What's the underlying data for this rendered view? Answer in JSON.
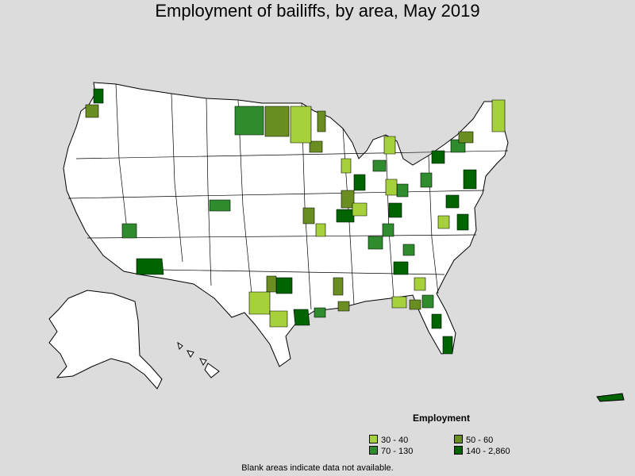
{
  "title": "Employment of bailiffs, by area, May 2019",
  "legend": {
    "title": "Employment",
    "items": [
      {
        "label": "30 - 40",
        "color": "#a6d13b"
      },
      {
        "label": "50 - 60",
        "color": "#6b8e23"
      },
      {
        "label": "70 - 130",
        "color": "#2e8b2e"
      },
      {
        "label": "140 - 2,860",
        "color": "#006400"
      }
    ]
  },
  "footnote": "Blank areas indicate data not available.",
  "colors": {
    "background": "#dcdcdc",
    "land": "#ffffff",
    "border": "#000000"
  }
}
